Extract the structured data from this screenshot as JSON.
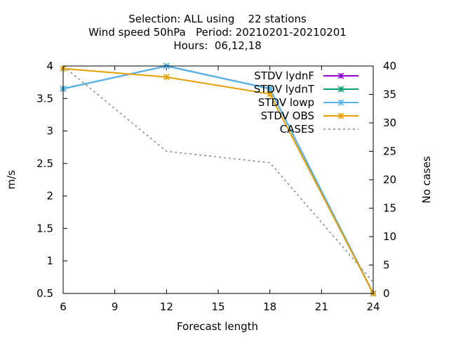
{
  "chart_data": {
    "type": "line",
    "title_lines": [
      "Selection: ALL using    22 stations",
      "Wind speed 50hPa   Period: 20210201-20210201",
      "Hours:  06,12,18"
    ],
    "xlabel": "Forecast length",
    "ylabel": "m/s",
    "y2label": "No cases",
    "xlim": [
      6,
      24
    ],
    "ylim": [
      0.5,
      4
    ],
    "y2lim": [
      0,
      40
    ],
    "xticks": [
      6,
      9,
      12,
      15,
      18,
      21,
      24
    ],
    "yticks": [
      0.5,
      1,
      1.5,
      2,
      2.5,
      3,
      3.5,
      4
    ],
    "yticklabels": [
      "0.5",
      "1",
      "1.5",
      "2",
      "2.5",
      "3",
      "3.5",
      "4"
    ],
    "y2ticks": [
      0,
      5,
      10,
      15,
      20,
      25,
      30,
      35,
      40
    ],
    "x": [
      6,
      12,
      18,
      24
    ],
    "legend_position": "top-right",
    "series": [
      {
        "name": "STDV lydnF",
        "color": "#9400d3",
        "axis": "y",
        "marker": "star",
        "values": [
          3.65,
          4.0,
          3.65,
          0.5
        ]
      },
      {
        "name": "STDV lydnT",
        "color": "#009e73",
        "axis": "y",
        "marker": "star",
        "values": [
          3.65,
          4.0,
          3.65,
          0.5
        ]
      },
      {
        "name": "STDV lowp",
        "color": "#56b4e9",
        "axis": "y",
        "marker": "star",
        "values": [
          3.65,
          4.0,
          3.65,
          0.5
        ]
      },
      {
        "name": "STDV OBS",
        "color": "#e69f00",
        "axis": "y",
        "marker": "star",
        "values": [
          3.96,
          3.83,
          3.57,
          0.5
        ]
      },
      {
        "name": "CASES",
        "color": "#888888",
        "axis": "y2",
        "marker": "none",
        "dashed": true,
        "values": [
          40,
          25,
          23,
          2
        ]
      }
    ]
  }
}
